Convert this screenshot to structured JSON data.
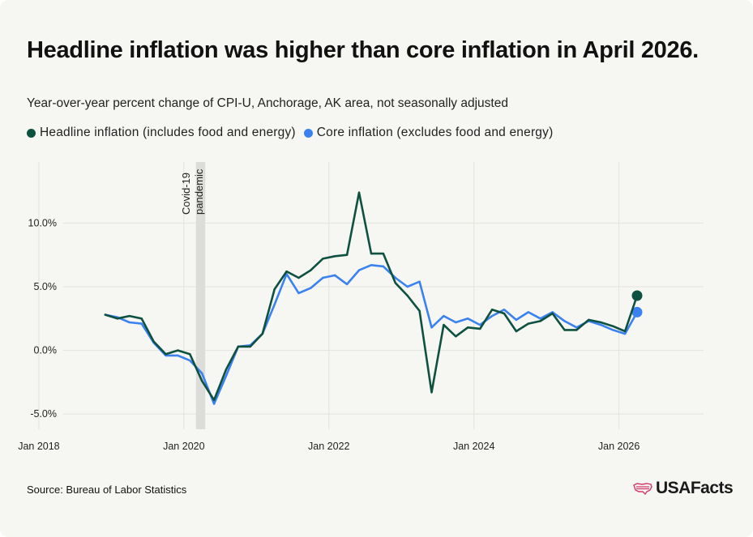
{
  "title": "Headline inflation was higher than core inflation in April 2026.",
  "subtitle": "Year-over-year percent change of CPI-U, Anchorage, AK area, not seasonally adjusted",
  "legend": [
    {
      "label": "Headline inflation (includes food and energy)",
      "color": "#0e5140"
    },
    {
      "label": "Core inflation (excludes food and energy)",
      "color": "#3b82f0"
    }
  ],
  "source": "Source: Bureau of Labor Statistics",
  "logo": {
    "text": "USAFacts",
    "icon": "usa-flag-map-icon",
    "icon_color": "#d23a6b"
  },
  "colors": {
    "headline": "#0e5140",
    "core": "#3b82f0",
    "grid": "#e3e3de",
    "band": "#dcdcd8"
  },
  "chart_data": {
    "type": "line",
    "ylim": [
      -6.2,
      14.8
    ],
    "xlim": [
      "2017-11",
      "2027-03"
    ],
    "y_ticks": [
      -5,
      0,
      5,
      10
    ],
    "y_tick_labels": [
      "-5.0%",
      "0.0%",
      "5.0%",
      "10.0%"
    ],
    "x_ticks": [
      "2018-01",
      "2020-01",
      "2022-01",
      "2024-01",
      "2026-01"
    ],
    "x_tick_labels": [
      "Jan 2018",
      "Jan 2020",
      "Jan 2022",
      "Jan 2024",
      "Jan 2026"
    ],
    "grid": true,
    "legend_position": "top-left",
    "annotation": {
      "lines": [
        "Covid-19",
        "pandemic"
      ],
      "x_start": "2020-03",
      "x_end": "2020-04"
    },
    "series": [
      {
        "name": "Headline inflation (includes food and energy)",
        "x": [
          "2018-12",
          "2019-02",
          "2019-04",
          "2019-06",
          "2019-08",
          "2019-10",
          "2019-12",
          "2020-02",
          "2020-04",
          "2020-06",
          "2020-08",
          "2020-10",
          "2020-12",
          "2021-02",
          "2021-04",
          "2021-06",
          "2021-08",
          "2021-10",
          "2021-12",
          "2022-02",
          "2022-04",
          "2022-06",
          "2022-08",
          "2022-10",
          "2022-12",
          "2023-02",
          "2023-04",
          "2023-06",
          "2023-08",
          "2023-10",
          "2023-12",
          "2024-02",
          "2024-04",
          "2024-06",
          "2024-08",
          "2024-10",
          "2024-12",
          "2025-02",
          "2025-04",
          "2025-06",
          "2025-08",
          "2025-10",
          "2025-12",
          "2026-02",
          "2026-04"
        ],
        "values": [
          2.8,
          2.5,
          2.7,
          2.5,
          0.7,
          -0.3,
          0.0,
          -0.3,
          -2.4,
          -3.9,
          -1.5,
          0.3,
          0.3,
          1.3,
          4.8,
          6.2,
          5.7,
          6.3,
          7.2,
          7.4,
          7.5,
          12.4,
          7.6,
          7.6,
          5.3,
          4.3,
          3.1,
          -3.3,
          2.0,
          1.1,
          1.8,
          1.7,
          3.2,
          2.9,
          1.5,
          2.1,
          2.3,
          2.9,
          1.6,
          1.6,
          2.4,
          2.2,
          1.9,
          1.5,
          4.3
        ]
      },
      {
        "name": "Core inflation (excludes food and energy)",
        "x": [
          "2018-12",
          "2019-02",
          "2019-04",
          "2019-06",
          "2019-08",
          "2019-10",
          "2019-12",
          "2020-02",
          "2020-04",
          "2020-06",
          "2020-08",
          "2020-10",
          "2020-12",
          "2021-02",
          "2021-04",
          "2021-06",
          "2021-08",
          "2021-10",
          "2021-12",
          "2022-02",
          "2022-04",
          "2022-06",
          "2022-08",
          "2022-10",
          "2022-12",
          "2023-02",
          "2023-04",
          "2023-06",
          "2023-08",
          "2023-10",
          "2023-12",
          "2024-02",
          "2024-04",
          "2024-06",
          "2024-08",
          "2024-10",
          "2024-12",
          "2025-02",
          "2025-04",
          "2025-06",
          "2025-08",
          "2025-10",
          "2025-12",
          "2026-02",
          "2026-04"
        ],
        "values": [
          2.8,
          2.6,
          2.2,
          2.1,
          0.6,
          -0.4,
          -0.4,
          -0.8,
          -1.8,
          -4.2,
          -2.0,
          0.3,
          0.4,
          1.3,
          3.6,
          6.0,
          4.5,
          4.9,
          5.7,
          5.9,
          5.2,
          6.3,
          6.7,
          6.6,
          5.7,
          5.0,
          5.4,
          1.8,
          2.7,
          2.2,
          2.5,
          2.0,
          2.7,
          3.2,
          2.4,
          3.0,
          2.5,
          3.0,
          2.3,
          1.8,
          2.3,
          2.0,
          1.6,
          1.3,
          3.0
        ]
      }
    ]
  }
}
